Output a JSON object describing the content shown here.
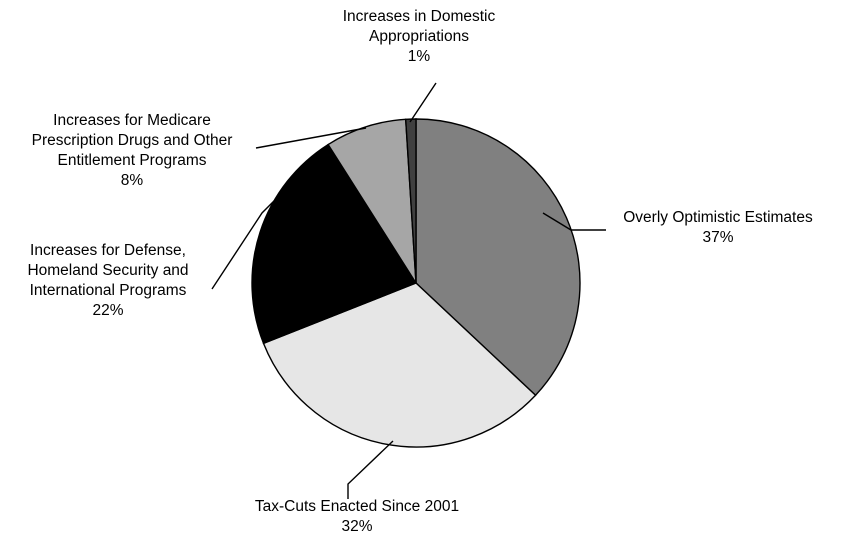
{
  "chart_data": {
    "type": "pie",
    "start_angle_deg": 0,
    "direction": "clockwise",
    "slices": [
      {
        "name": "Overly Optimistic Estimates",
        "value": 37,
        "value_label": "37%",
        "color": "#808080",
        "label_lines": [
          "Overly Optimistic Estimates"
        ]
      },
      {
        "name": "Tax-Cuts Enacted Since 2001",
        "value": 32,
        "value_label": "32%",
        "color": "#e6e6e6",
        "label_lines": [
          "Tax-Cuts Enacted Since 2001"
        ]
      },
      {
        "name": "Increases for Defense, Homeland Security and International Programs",
        "value": 22,
        "value_label": "22%",
        "color": "#000000",
        "label_lines": [
          "Increases for Defense,",
          "Homeland Security and",
          "International Programs"
        ]
      },
      {
        "name": "Increases for Medicare Prescription Drugs and Other Entitlement Programs",
        "value": 8,
        "value_label": "8%",
        "color": "#a6a6a6",
        "label_lines": [
          "Increases for Medicare",
          "Prescription Drugs and Other",
          "Entitlement Programs"
        ]
      },
      {
        "name": "Increases in Domestic Appropriations",
        "value": 1,
        "value_label": "1%",
        "color": "#404040",
        "label_lines": [
          "Increases in Domestic",
          "Appropriations"
        ]
      }
    ]
  }
}
